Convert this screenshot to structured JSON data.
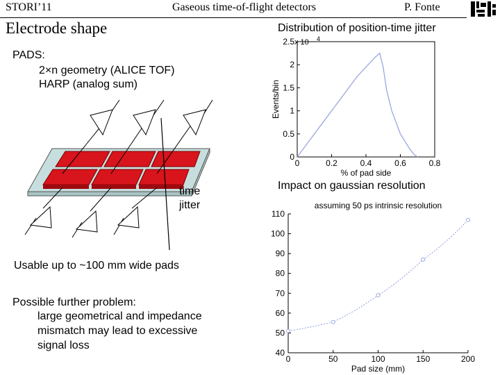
{
  "header": {
    "left": "STORI’11",
    "center": "Gaseous time-of-flight detectors",
    "right": "P. Fonte"
  },
  "slide": {
    "title": "Electrode shape",
    "pads_heading": "PADS:",
    "pads_items": [
      "2×n geometry (ALICE TOF)",
      "HARP (analog sum)"
    ],
    "jitter_label": [
      "time",
      "jitter"
    ],
    "usable": "Usable up to ~100 mm wide pads",
    "problem_heading": "Possible further problem:",
    "problem_lines": [
      "large geometrical and impedance",
      "mismatch may lead to excessive",
      "signal loss"
    ]
  },
  "colors": {
    "pad": "#d8141c",
    "plate": "#c7dede",
    "curve": "#9aa6e0"
  },
  "chart_data": [
    {
      "type": "line",
      "title": "Distribution of position-time jitter",
      "xlabel": "% of pad side",
      "ylabel": "Events/bin",
      "y_exponent": "x 10",
      "y_exponent_power": "4",
      "xlim": [
        0,
        0.8
      ],
      "ylim": [
        0,
        2.5
      ],
      "x_ticks": [
        "0",
        "0.2",
        "0.4",
        "0.6",
        "0.8"
      ],
      "y_ticks": [
        "0",
        "0.5",
        "1",
        "1.5",
        "2",
        "2.5"
      ],
      "x": [
        0.0,
        0.05,
        0.1,
        0.15,
        0.2,
        0.25,
        0.3,
        0.35,
        0.4,
        0.45,
        0.48,
        0.5,
        0.52,
        0.55,
        0.6,
        0.65,
        0.68,
        0.7
      ],
      "y": [
        0.0,
        0.25,
        0.5,
        0.75,
        1.0,
        1.25,
        1.5,
        1.75,
        1.95,
        2.15,
        2.25,
        1.95,
        1.45,
        1.0,
        0.5,
        0.2,
        0.05,
        0.0
      ]
    },
    {
      "type": "line",
      "title": "Impact on gaussian resolution",
      "subtitle": "assuming 50 ps intrinsic resolution",
      "xlabel": "Pad size (mm)",
      "ylabel": "",
      "xlim": [
        0,
        200
      ],
      "ylim": [
        40,
        110
      ],
      "x_ticks": [
        "0",
        "50",
        "100",
        "150",
        "200"
      ],
      "y_ticks": [
        "40",
        "50",
        "60",
        "70",
        "80",
        "90",
        "100",
        "110"
      ],
      "x": [
        0,
        50,
        100,
        150,
        200
      ],
      "y": [
        51,
        55.5,
        69,
        87,
        107
      ]
    }
  ]
}
